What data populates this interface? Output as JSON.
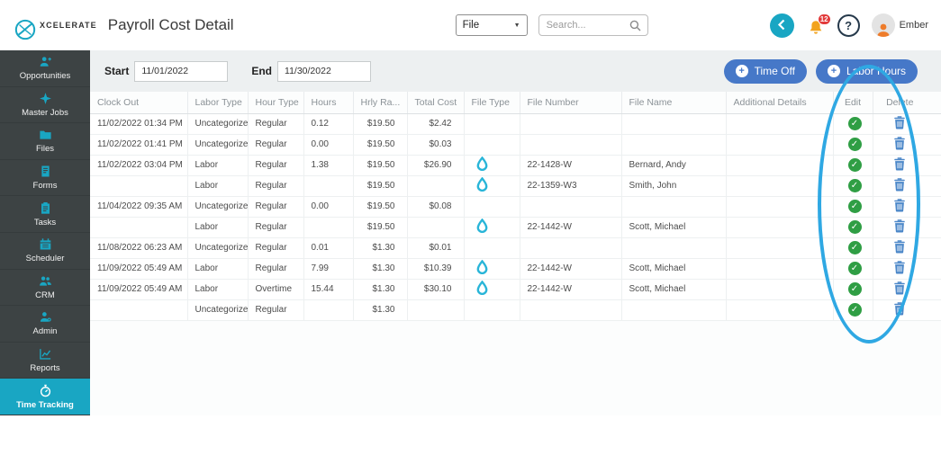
{
  "colors": {
    "accent": "#19a6c3",
    "sidebar_bg": "#3d4344",
    "button_blue": "#4678c8",
    "check_green": "#2f9e44",
    "trash_blue": "#4a86c8",
    "drop_cyan": "#29b5d8",
    "bell_amber": "#f2a31d",
    "badge_red": "#e23b3b",
    "annotation_blue": "#2fa8e3"
  },
  "topbar": {
    "logo_text": "XCELERATE",
    "title": "Payroll Cost Detail",
    "file_menu_label": "File",
    "search_placeholder": "Search...",
    "notification_badge": "12",
    "help_label": "?",
    "user_name": "Ember"
  },
  "sidebar": {
    "items": [
      {
        "label": "Opportunities",
        "icon": "person-plus-icon",
        "active": false
      },
      {
        "label": "Master Jobs",
        "icon": "spark-icon",
        "active": false
      },
      {
        "label": "Files",
        "icon": "folder-icon",
        "active": false
      },
      {
        "label": "Forms",
        "icon": "form-document-icon",
        "active": false
      },
      {
        "label": "Tasks",
        "icon": "clipboard-icon",
        "active": false
      },
      {
        "label": "Scheduler",
        "icon": "calendar-icon",
        "active": false
      },
      {
        "label": "CRM",
        "icon": "people-icon",
        "active": false
      },
      {
        "label": "Admin",
        "icon": "person-gear-icon",
        "active": false
      },
      {
        "label": "Reports",
        "icon": "chart-icon",
        "active": false
      },
      {
        "label": "Time Tracking",
        "icon": "stopwatch-icon",
        "active": true
      }
    ]
  },
  "filters": {
    "start_label": "Start",
    "start_value": "11/01/2022",
    "end_label": "End",
    "end_value": "11/30/2022"
  },
  "buttons": {
    "time_off_label": "Time Off",
    "labor_hours_label": "Labor Hours"
  },
  "table": {
    "columns": [
      "Clock Out",
      "Labor Type",
      "Hour Type",
      "Hours",
      "Hrly Ra...",
      "Total Cost",
      "File Type",
      "File Number",
      "File Name",
      "Additional Details",
      "Edit",
      "Delete"
    ],
    "row_icons": {
      "edit": "check-circle-icon",
      "delete": "trash-icon",
      "file_type": "water-drop-icon"
    },
    "rows": [
      {
        "clock_out": "11/02/2022 01:34 PM",
        "labor_type": "Uncategorize...",
        "hour_type": "Regular",
        "hours": "0.12",
        "hrly_rate": "$19.50",
        "total_cost": "$2.42",
        "has_file": false,
        "file_number": "",
        "file_name": "",
        "additional_details": ""
      },
      {
        "clock_out": "11/02/2022 01:41 PM",
        "labor_type": "Uncategorize...",
        "hour_type": "Regular",
        "hours": "0.00",
        "hrly_rate": "$19.50",
        "total_cost": "$0.03",
        "has_file": false,
        "file_number": "",
        "file_name": "",
        "additional_details": ""
      },
      {
        "clock_out": "11/02/2022 03:04 PM",
        "labor_type": "Labor",
        "hour_type": "Regular",
        "hours": "1.38",
        "hrly_rate": "$19.50",
        "total_cost": "$26.90",
        "has_file": true,
        "file_number": "22-1428-W",
        "file_name": "Bernard, Andy",
        "additional_details": ""
      },
      {
        "clock_out": "",
        "labor_type": "Labor",
        "hour_type": "Regular",
        "hours": "",
        "hrly_rate": "$19.50",
        "total_cost": "",
        "has_file": true,
        "file_number": "22-1359-W3",
        "file_name": "Smith, John",
        "additional_details": ""
      },
      {
        "clock_out": "11/04/2022 09:35 AM",
        "labor_type": "Uncategorize...",
        "hour_type": "Regular",
        "hours": "0.00",
        "hrly_rate": "$19.50",
        "total_cost": "$0.08",
        "has_file": false,
        "file_number": "",
        "file_name": "",
        "additional_details": ""
      },
      {
        "clock_out": "",
        "labor_type": "Labor",
        "hour_type": "Regular",
        "hours": "",
        "hrly_rate": "$19.50",
        "total_cost": "",
        "has_file": true,
        "file_number": "22-1442-W",
        "file_name": "Scott, Michael",
        "additional_details": ""
      },
      {
        "clock_out": "11/08/2022 06:23 AM",
        "labor_type": "Uncategorize...",
        "hour_type": "Regular",
        "hours": "0.01",
        "hrly_rate": "$1.30",
        "total_cost": "$0.01",
        "has_file": false,
        "file_number": "",
        "file_name": "",
        "additional_details": ""
      },
      {
        "clock_out": "11/09/2022 05:49 AM",
        "labor_type": "Labor",
        "hour_type": "Regular",
        "hours": "7.99",
        "hrly_rate": "$1.30",
        "total_cost": "$10.39",
        "has_file": true,
        "file_number": "22-1442-W",
        "file_name": "Scott, Michael",
        "additional_details": ""
      },
      {
        "clock_out": "11/09/2022 05:49 AM",
        "labor_type": "Labor",
        "hour_type": "Overtime",
        "hours": "15.44",
        "hrly_rate": "$1.30",
        "total_cost": "$30.10",
        "has_file": true,
        "file_number": "22-1442-W",
        "file_name": "Scott, Michael",
        "additional_details": ""
      },
      {
        "clock_out": "",
        "labor_type": "Uncategorize...",
        "hour_type": "Regular",
        "hours": "",
        "hrly_rate": "$1.30",
        "total_cost": "",
        "has_file": false,
        "file_number": "",
        "file_name": "",
        "additional_details": ""
      }
    ]
  },
  "annotation": {
    "shape": "ellipse",
    "color": "#2fa8e3",
    "target": "edit-delete-columns"
  }
}
